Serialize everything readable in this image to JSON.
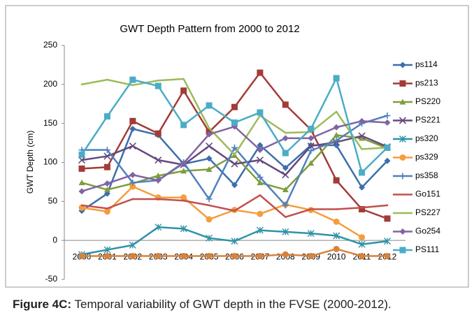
{
  "chart_data": {
    "type": "line",
    "title": "GWT Depth Pattern from 2000 to 2012",
    "y_label": "GWT Depth (cm)",
    "categories": [
      "2000",
      "2001",
      "2002",
      "2003",
      "2004",
      "2005",
      "2006",
      "2007",
      "2008",
      "2009",
      "2010",
      "2011",
      "2012"
    ],
    "ylim": [
      -50,
      250
    ],
    "yticks": [
      -50,
      0,
      50,
      100,
      150,
      200,
      250
    ],
    "grid": false,
    "legend": "right",
    "series": [
      {
        "name": "ps114",
        "color": "#3d6eab",
        "marker": "diamond",
        "values": [
          38,
          60,
          143,
          135,
          98,
          105,
          71,
          122,
          93,
          122,
          122,
          68,
          102
        ]
      },
      {
        "name": "ps213",
        "color": "#a33b36",
        "marker": "square",
        "values": [
          92,
          94,
          153,
          137,
          192,
          139,
          171,
          215,
          174,
          142,
          77,
          40,
          28
        ]
      },
      {
        "name": "PS220",
        "color": "#7f9e3c",
        "marker": "triangle",
        "values": [
          74,
          65,
          73,
          83,
          89,
          91,
          109,
          74,
          65,
          99,
          135,
          131,
          118
        ]
      },
      {
        "name": "PS221",
        "color": "#65497f",
        "marker": "x",
        "values": [
          103,
          108,
          121,
          103,
          97,
          121,
          98,
          103,
          84,
          121,
          126,
          134,
          120
        ]
      },
      {
        "name": "ps320",
        "color": "#2e93a8",
        "marker": "asterisk",
        "values": [
          -18,
          -12,
          -6,
          17,
          15,
          3,
          -1,
          13,
          11,
          9,
          6,
          -5,
          -1
        ]
      },
      {
        "name": "ps329",
        "color": "#f59d3d",
        "marker": "circle",
        "values": [
          42,
          37,
          69,
          55,
          55,
          27,
          39,
          34,
          46,
          39,
          24,
          4,
          null
        ]
      },
      {
        "name": "ps358",
        "color": "#4f81bd",
        "marker": "plus",
        "values": [
          116,
          116,
          74,
          77,
          100,
          53,
          119,
          81,
          45,
          115,
          128,
          150,
          160
        ]
      },
      {
        "name": "Go151",
        "color": "#c0504d",
        "marker": "none",
        "values": [
          45,
          41,
          53,
          53,
          51,
          45,
          38,
          58,
          30,
          40,
          40,
          42,
          45
        ]
      },
      {
        "name": "PS227",
        "color": "#9bbb59",
        "marker": "none",
        "values": [
          200,
          206,
          199,
          205,
          207,
          144,
          110,
          160,
          138,
          139,
          165,
          117,
          119
        ]
      },
      {
        "name": "Go254",
        "color": "#8064a2",
        "marker": "diamond",
        "values": [
          63,
          73,
          84,
          77,
          99,
          136,
          146,
          116,
          131,
          131,
          145,
          153,
          151
        ]
      },
      {
        "name": "PS111",
        "color": "#4bacc6",
        "marker": "square",
        "values": [
          110,
          159,
          206,
          198,
          148,
          173,
          151,
          164,
          112,
          143,
          208,
          87,
          119
        ]
      },
      {
        "color": "#d9823b",
        "marker": "circle",
        "values": [
          -20,
          -20,
          -20,
          -20,
          -20,
          -20,
          -20,
          -20,
          -18,
          -20,
          -11,
          -20,
          -20
        ]
      }
    ]
  },
  "caption": {
    "label": "Figure 4C:",
    "text": "Temporal variability of GWT depth in the FVSE (2000-2012)."
  }
}
